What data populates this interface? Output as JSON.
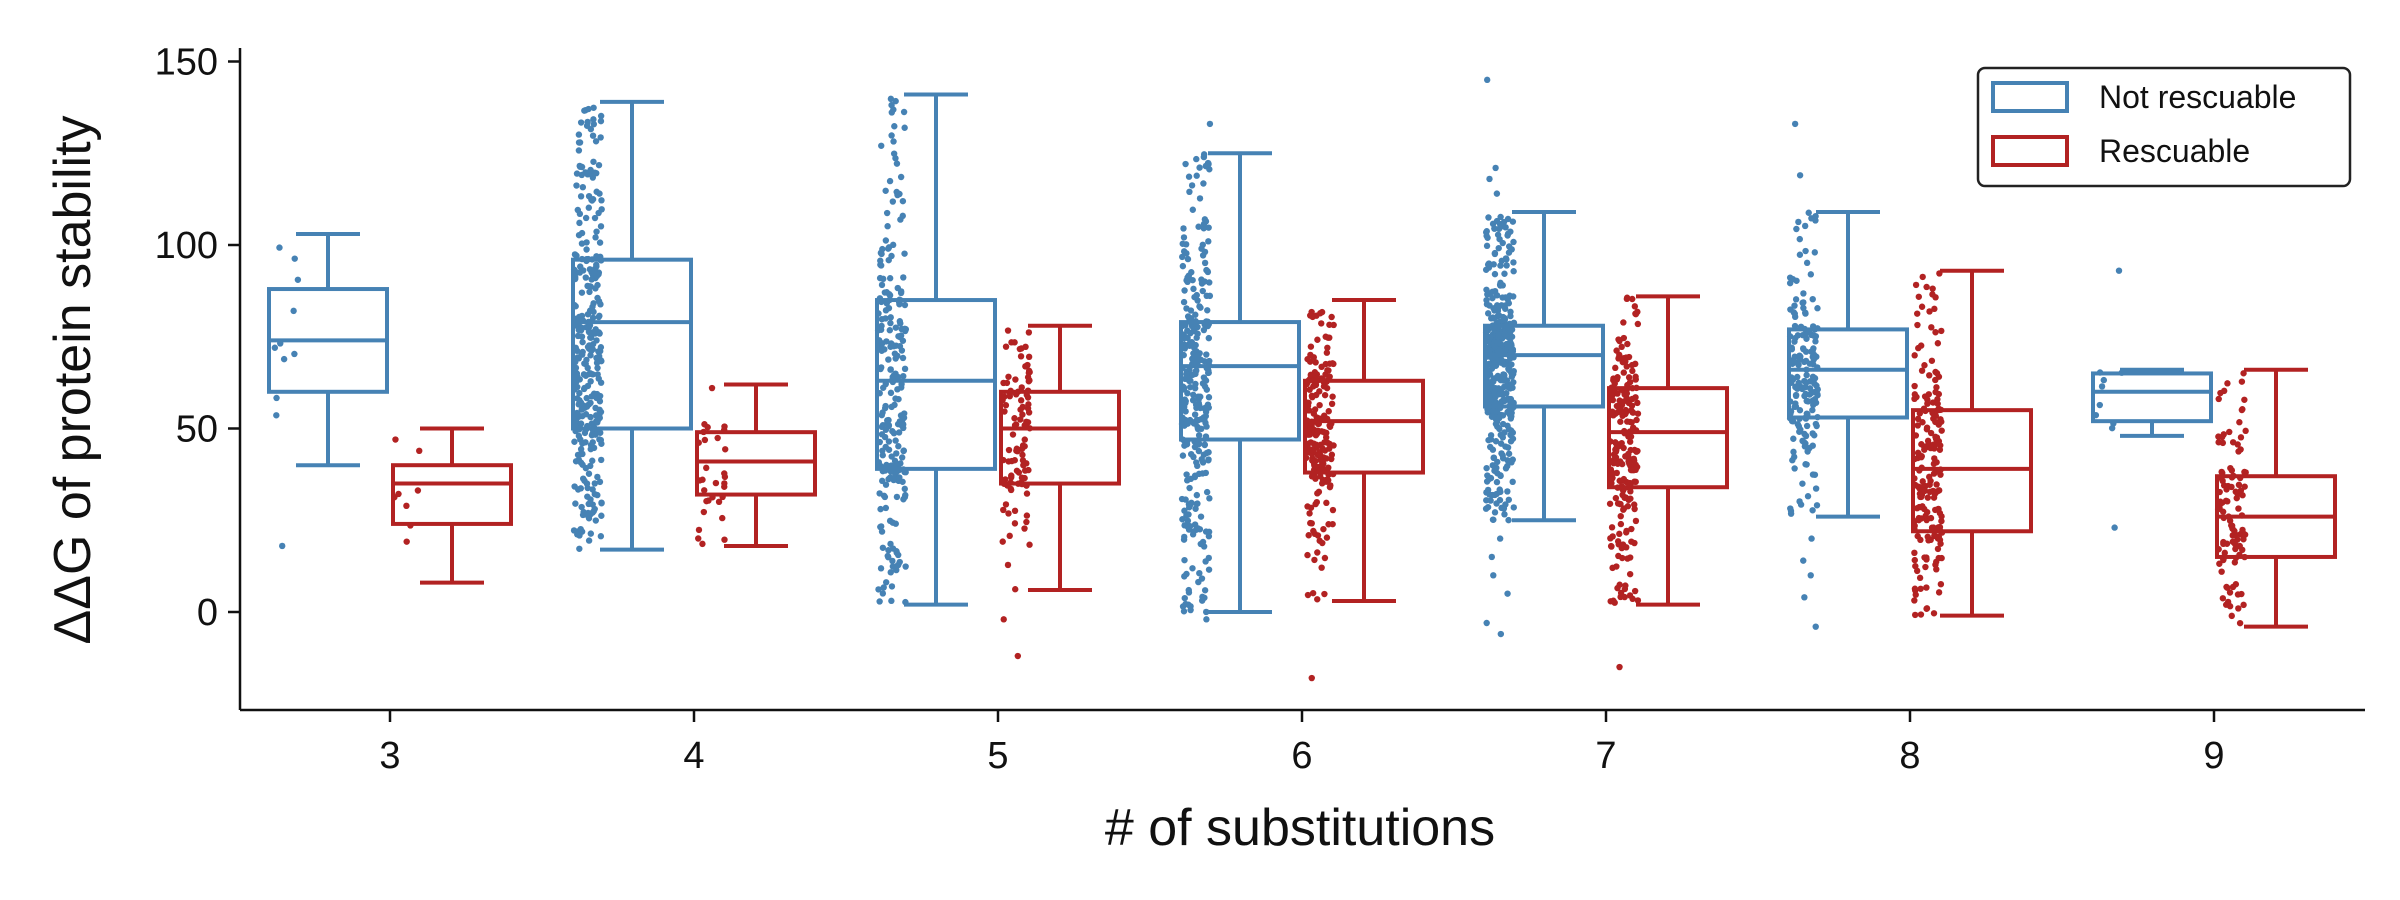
{
  "chart_data": {
    "type": "box",
    "title": "",
    "xlabel": "# of substitutions",
    "ylabel": "ΔΔG of protein stability",
    "categories": [
      "3",
      "4",
      "5",
      "6",
      "7",
      "8",
      "9"
    ],
    "ylim": [
      -27,
      155
    ],
    "yticks": [
      0,
      50,
      100,
      150
    ],
    "grid": false,
    "legend_position": "top-right",
    "series": [
      {
        "name": "Not rescuable",
        "color": "#4682b4",
        "boxes": [
          {
            "category": "3",
            "whisker_low": 40,
            "q1": 60,
            "median": 74,
            "q3": 88,
            "whisker_high": 103,
            "approx_points": 10,
            "outliers": [
              18
            ]
          },
          {
            "category": "4",
            "whisker_low": 17,
            "q1": 50,
            "median": 79,
            "q3": 96,
            "whisker_high": 139,
            "approx_points": 320,
            "outliers": []
          },
          {
            "category": "5",
            "whisker_low": 2,
            "q1": 39,
            "median": 63,
            "q3": 85,
            "whisker_high": 141,
            "approx_points": 240,
            "outliers": []
          },
          {
            "category": "6",
            "whisker_low": 0,
            "q1": 47,
            "median": 67,
            "q3": 79,
            "whisker_high": 125,
            "approx_points": 300,
            "outliers": [
              133,
              -2
            ]
          },
          {
            "category": "7",
            "whisker_low": 25,
            "q1": 56,
            "median": 70,
            "q3": 78,
            "whisker_high": 109,
            "approx_points": 420,
            "outliers": [
              145,
              121,
              118,
              114,
              20,
              15,
              10,
              5,
              -3,
              -6
            ]
          },
          {
            "category": "8",
            "whisker_low": 26,
            "q1": 53,
            "median": 66,
            "q3": 77,
            "whisker_high": 109,
            "approx_points": 170,
            "outliers": [
              133,
              119,
              20,
              14,
              10,
              4,
              -4
            ]
          },
          {
            "category": "9",
            "whisker_low": 48,
            "q1": 52,
            "median": 60,
            "q3": 65,
            "whisker_high": 66,
            "approx_points": 8,
            "outliers": [
              93,
              23
            ]
          }
        ]
      },
      {
        "name": "Rescuable",
        "color": "#b22222",
        "boxes": [
          {
            "category": "3",
            "whisker_low": 8,
            "q1": 24,
            "median": 35,
            "q3": 40,
            "whisker_high": 50,
            "approx_points": 8,
            "outliers": []
          },
          {
            "category": "4",
            "whisker_low": 18,
            "q1": 32,
            "median": 41,
            "q3": 49,
            "whisker_high": 62,
            "approx_points": 30,
            "outliers": []
          },
          {
            "category": "5",
            "whisker_low": 6,
            "q1": 35,
            "median": 50,
            "q3": 60,
            "whisker_high": 78,
            "approx_points": 100,
            "outliers": [
              -2,
              -12
            ]
          },
          {
            "category": "6",
            "whisker_low": 3,
            "q1": 38,
            "median": 52,
            "q3": 63,
            "whisker_high": 85,
            "approx_points": 200,
            "outliers": [
              -18
            ]
          },
          {
            "category": "7",
            "whisker_low": 2,
            "q1": 34,
            "median": 49,
            "q3": 61,
            "whisker_high": 86,
            "approx_points": 220,
            "outliers": [
              -15
            ]
          },
          {
            "category": "8",
            "whisker_low": -1,
            "q1": 22,
            "median": 39,
            "q3": 55,
            "whisker_high": 93,
            "approx_points": 190,
            "outliers": []
          },
          {
            "category": "9",
            "whisker_low": -4,
            "q1": 15,
            "median": 26,
            "q3": 37,
            "whisker_high": 66,
            "approx_points": 110,
            "outliers": []
          }
        ]
      }
    ]
  }
}
